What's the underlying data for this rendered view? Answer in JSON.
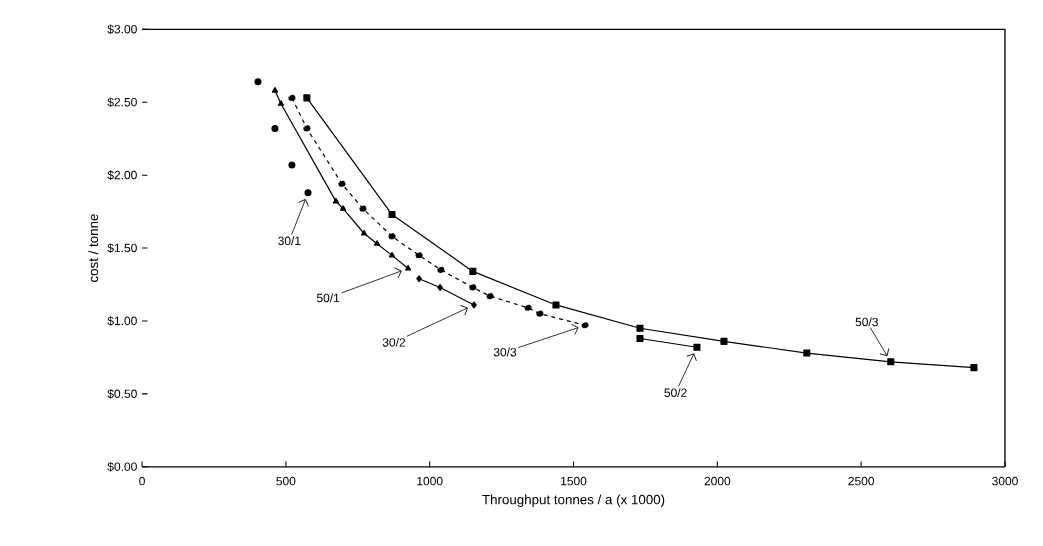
{
  "chart_data": {
    "type": "line",
    "xlabel": "Throughput  tonnes / a  (x 1000)",
    "ylabel": "cost / tonne",
    "xlim": [
      0,
      3000
    ],
    "xticks": [
      0,
      500,
      1000,
      1500,
      2000,
      2500,
      3000
    ],
    "ylim": [
      0,
      3
    ],
    "yticks": [
      {
        "value": 0,
        "label": "$0.00"
      },
      {
        "value": 0.5,
        "label": "$0.50"
      },
      {
        "value": 1,
        "label": "$1.00"
      },
      {
        "value": 1.5,
        "label": "$1.50"
      },
      {
        "value": 2,
        "label": "$2.00"
      },
      {
        "value": 2.5,
        "label": "$2.50"
      },
      {
        "value": 3,
        "label": "$3.00"
      }
    ],
    "grid": false,
    "legend": false,
    "series": [
      {
        "name": "30/1",
        "type": "scatter",
        "color": "#000000",
        "marker": "circle",
        "x": [
          403,
          462,
          521,
          577
        ],
        "values": [
          2.64,
          2.32,
          2.07,
          1.88
        ]
      },
      {
        "name": "50/1",
        "color": "#000000",
        "marker": "triangle",
        "line_style": "solid",
        "x": [
          462,
          483,
          674,
          699,
          772,
          817,
          869,
          925
        ],
        "values": [
          2.58,
          2.49,
          1.82,
          1.77,
          1.6,
          1.53,
          1.45,
          1.36
        ]
      },
      {
        "name": "30/2",
        "color": "#000000",
        "marker": "diamond",
        "line_style": "solid",
        "x": [
          963,
          1036,
          1154
        ],
        "values": [
          1.29,
          1.23,
          1.11
        ]
      },
      {
        "name": "30/3",
        "color": "#000000",
        "marker": "circle",
        "line_style": "dashed",
        "x": [
          521,
          573,
          695,
          768,
          869,
          963,
          1039,
          1150,
          1210,
          1342,
          1383,
          1540
        ],
        "values": [
          2.53,
          2.32,
          1.94,
          1.77,
          1.58,
          1.45,
          1.35,
          1.23,
          1.17,
          1.09,
          1.05,
          0.97
        ]
      },
      {
        "name": "50/2",
        "color": "#000000",
        "marker": "square",
        "line_style": "solid",
        "x": [
          1731,
          1929
        ],
        "values": [
          0.88,
          0.82
        ]
      },
      {
        "name": "50/3",
        "color": "#000000",
        "marker": "square",
        "line_style": "solid",
        "x": [
          573,
          869,
          1150,
          1439,
          1731,
          2023,
          2311,
          2603,
          2892
        ],
        "values": [
          2.53,
          1.73,
          1.34,
          1.11,
          0.95,
          0.86,
          0.78,
          0.72,
          0.68
        ]
      }
    ]
  }
}
